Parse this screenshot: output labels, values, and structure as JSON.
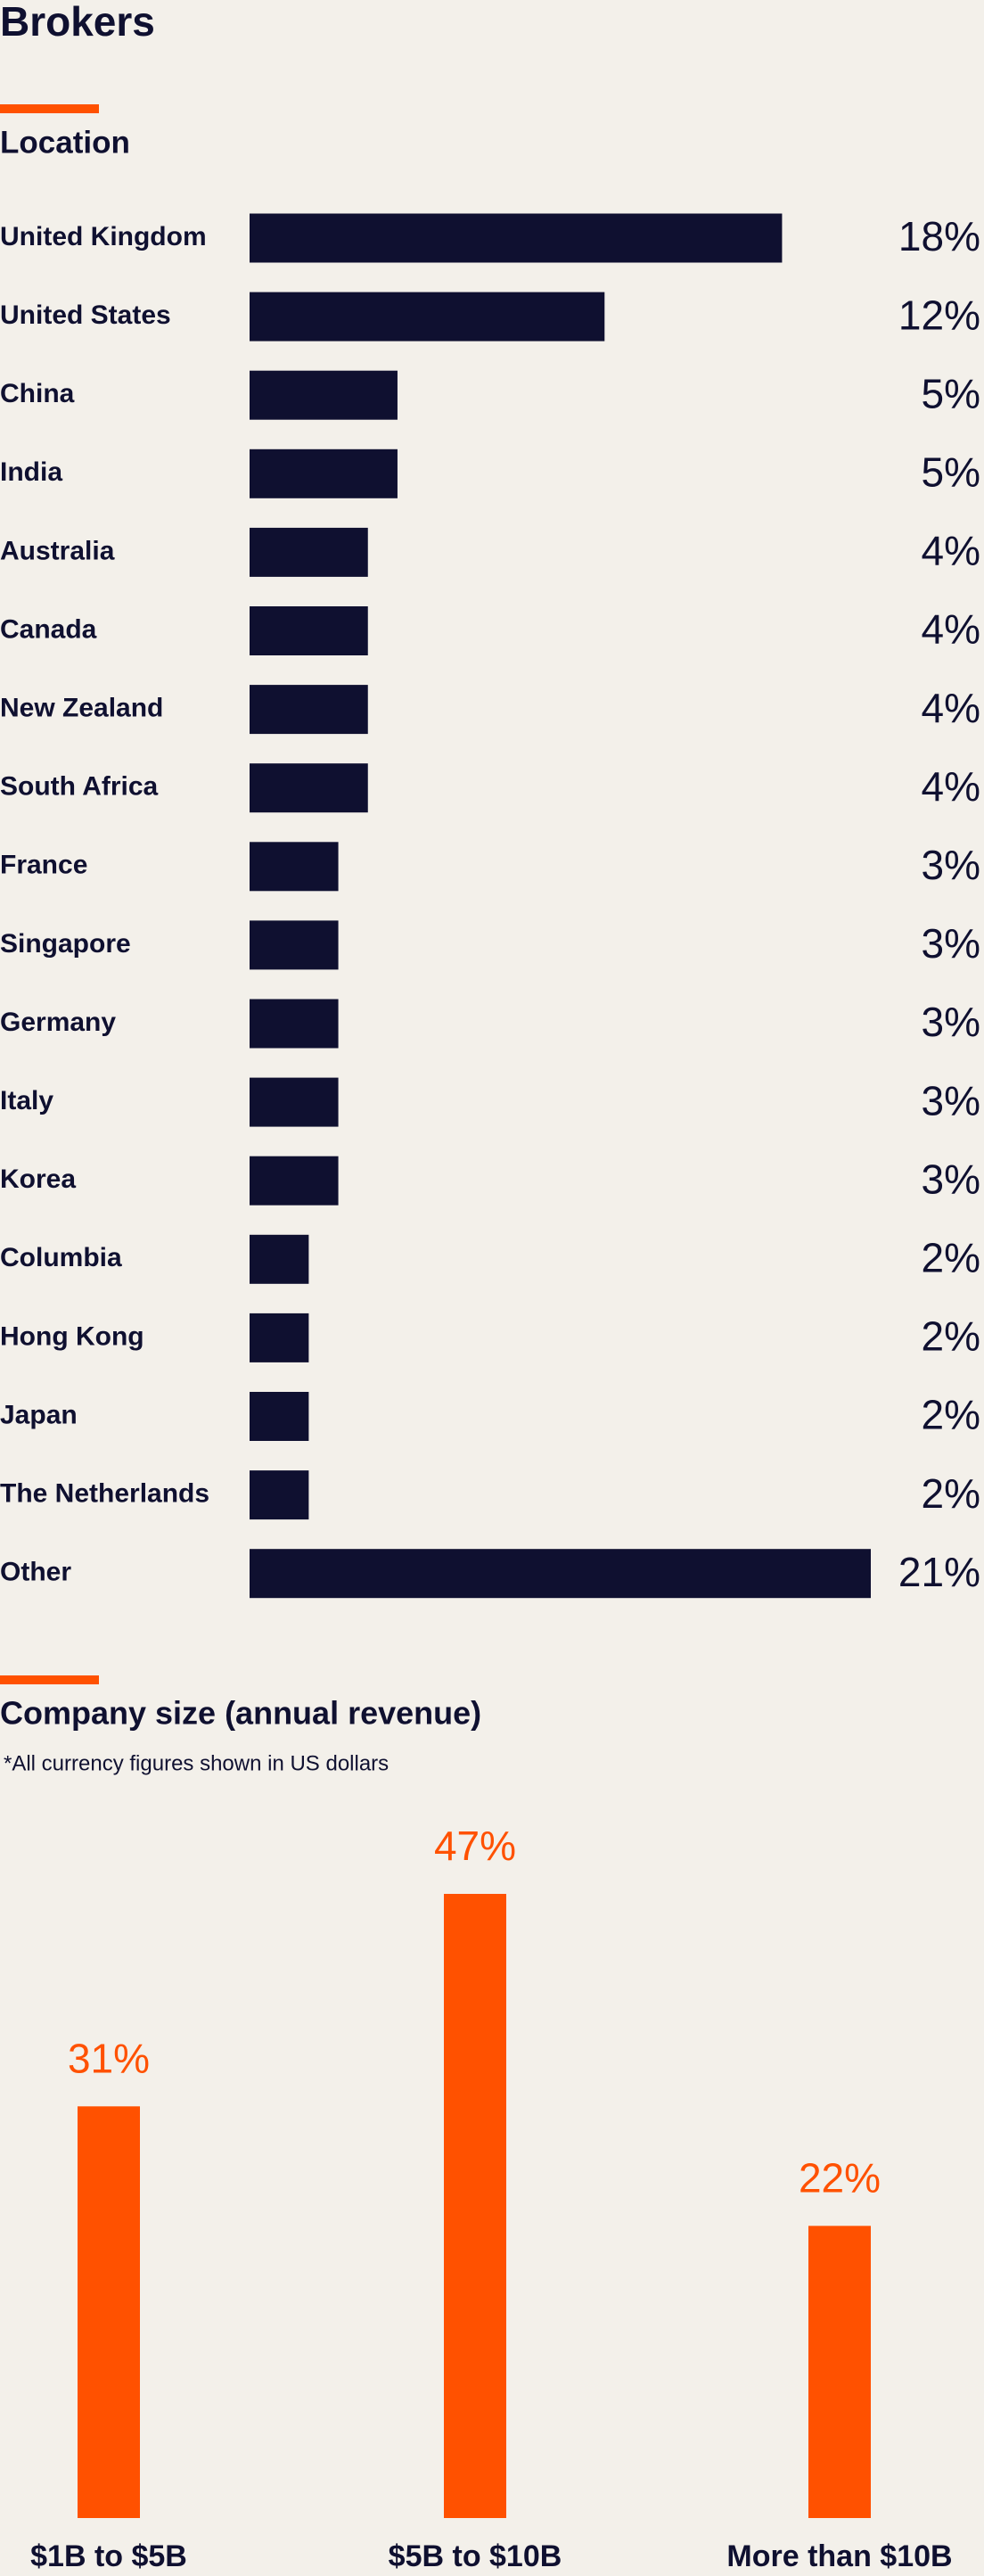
{
  "title": "Brokers",
  "chart_data": [
    {
      "type": "bar",
      "title": "Location",
      "color": "#0f1030",
      "categories": [
        "United Kingdom",
        "United States",
        "China",
        "India",
        "Australia",
        "Canada",
        "New Zealand",
        "South Africa",
        "France",
        "Singapore",
        "Germany",
        "Italy",
        "Korea",
        "Columbia",
        "Hong Kong",
        "Japan",
        "The Netherlands",
        "Other"
      ],
      "values": [
        18,
        12,
        5,
        5,
        4,
        4,
        4,
        4,
        3,
        3,
        3,
        3,
        3,
        2,
        2,
        2,
        2,
        21
      ],
      "value_labels": [
        "18%",
        "12%",
        "5%",
        "5%",
        "4%",
        "4%",
        "4%",
        "4%",
        "3%",
        "3%",
        "3%",
        "3%",
        "3%",
        "2%",
        "2%",
        "2%",
        "2%",
        "21%"
      ]
    },
    {
      "type": "column",
      "title": "Company size (annual revenue)",
      "note": "*All currency figures shown in US dollars",
      "color": "#ff5100",
      "categories": [
        "$1B to $5B",
        "$5B to $10B",
        "More than $10B"
      ],
      "values": [
        31,
        47,
        22
      ],
      "value_labels": [
        "31%",
        "47%",
        "22%"
      ]
    }
  ]
}
